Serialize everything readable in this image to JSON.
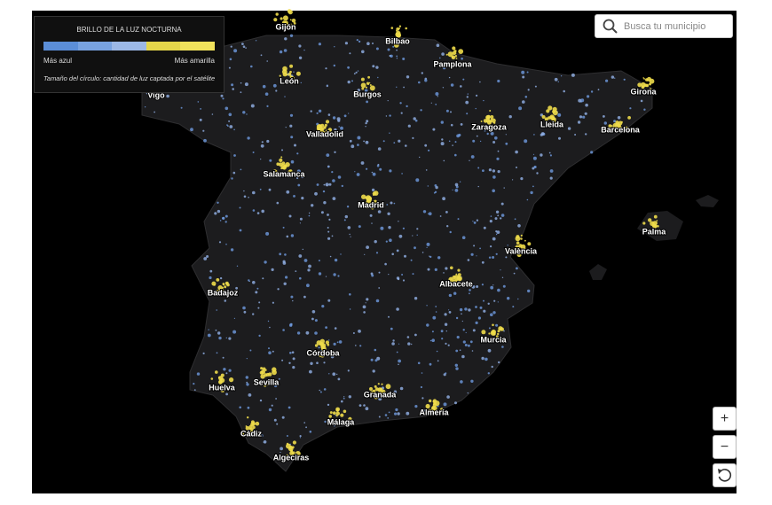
{
  "legend": {
    "title": "BRILLO DE LA LUZ NOCTURNA",
    "low_label": "Más azul",
    "high_label": "Más amarilla",
    "note": "Tamaño del círculo: cantidad de luz captada por el satélite"
  },
  "search": {
    "placeholder": "Busca tu municipio"
  },
  "controls": {
    "zoom_in": "+",
    "zoom_out": "−"
  },
  "cities": [
    "Gijón",
    "Bilbao",
    "Pamplona",
    "León",
    "Burgos",
    "Girona",
    "Vigo",
    "Lleida",
    "Zaragoza",
    "Barcelona",
    "Valladolid",
    "Salamanca",
    "Madrid",
    "Palma",
    "València",
    "Albacete",
    "Badajoz",
    "Murcia",
    "Córdoba",
    "Sevilla",
    "Huelva",
    "Granada",
    "Almería",
    "Málaga",
    "Cádiz",
    "Algeciras"
  ]
}
